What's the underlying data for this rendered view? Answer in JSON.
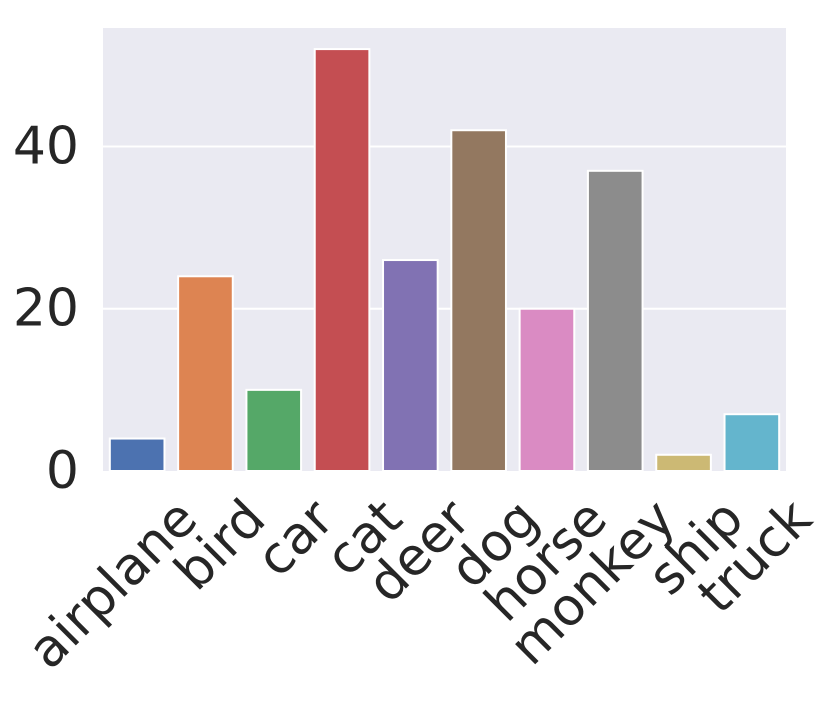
{
  "chart_data": {
    "type": "bar",
    "title": "",
    "xlabel": "",
    "ylabel": "",
    "categories": [
      "airplane",
      "bird",
      "car",
      "cat",
      "deer",
      "dog",
      "horse",
      "monkey",
      "ship",
      "truck"
    ],
    "values": [
      4,
      24,
      10,
      52,
      26,
      42,
      20,
      37,
      2,
      7
    ],
    "colors": [
      "#4c72b0",
      "#dd8452",
      "#55a868",
      "#c44e52",
      "#8172b3",
      "#937860",
      "#da8bc3",
      "#8c8c8c",
      "#ccb974",
      "#64b5cd"
    ],
    "ylim": [
      0,
      54.6
    ],
    "yticks": [
      0,
      20,
      40
    ],
    "grid": true,
    "background": "#eaeaf2",
    "legend": "none"
  }
}
